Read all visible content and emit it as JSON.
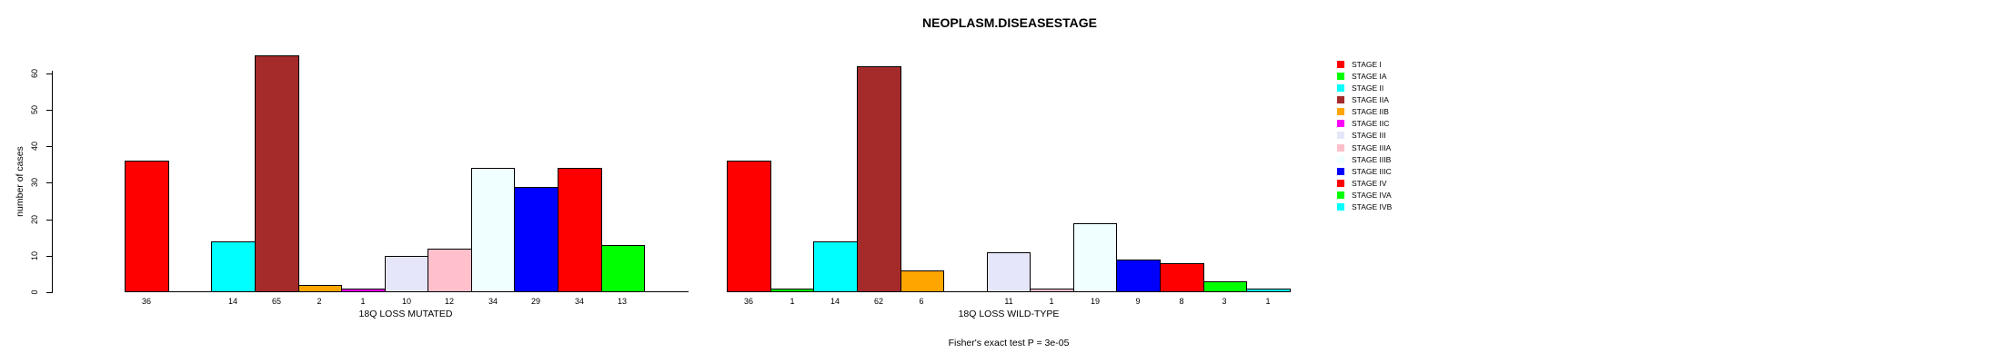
{
  "chart_data": {
    "type": "bar",
    "title": "NEOPLASM.DISEASESTAGE",
    "ylabel": "number of cases",
    "yticks": [
      0,
      10,
      20,
      30,
      40,
      50,
      60
    ],
    "ylim": [
      0,
      65
    ],
    "grid": false,
    "legend_position": "right",
    "categories": [
      "STAGE I",
      "STAGE IA",
      "STAGE II",
      "STAGE IIA",
      "STAGE IIB",
      "STAGE IIC",
      "STAGE III",
      "STAGE IIIA",
      "STAGE IIIB",
      "STAGE IIIC",
      "STAGE IV",
      "STAGE IVA",
      "STAGE IVB"
    ],
    "colors": [
      "#FF0000",
      "#00FF00",
      "#00FFFF",
      "#A52A2A",
      "#FFA500",
      "#FF00FF",
      "#E6E6FA",
      "#FFC0CB",
      "#F0FFFF",
      "#0000FF",
      "#FF0000",
      "#00FF00",
      "#00FFFF"
    ],
    "series": [
      {
        "name": "18Q LOSS MUTATED",
        "values": [
          36,
          0,
          14,
          65,
          2,
          1,
          10,
          12,
          34,
          29,
          34,
          13,
          0
        ]
      },
      {
        "name": "18Q LOSS WILD-TYPE",
        "values": [
          36,
          1,
          14,
          62,
          6,
          0,
          11,
          1,
          19,
          9,
          8,
          3,
          1
        ]
      }
    ],
    "bar_count_labels_shown": "nonzero values only",
    "annotation": "Fisher's exact test P = 3e-05"
  }
}
